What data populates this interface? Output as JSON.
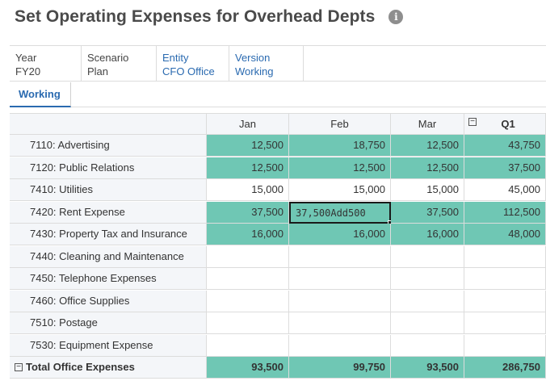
{
  "page": {
    "title": "Set Operating Expenses for Overhead Depts",
    "info_icon": "info-icon"
  },
  "pov": {
    "year": {
      "label": "Year",
      "value": "FY20"
    },
    "scenario": {
      "label": "Scenario",
      "value": "Plan"
    },
    "entity": {
      "label": "Entity",
      "value": "CFO Office"
    },
    "version": {
      "label": "Version",
      "value": "Working"
    }
  },
  "tabs": [
    {
      "label": "Working",
      "active": true
    }
  ],
  "grid": {
    "columns": [
      "Jan",
      "Feb",
      "Mar",
      "Q1"
    ],
    "collapse_symbol": "−",
    "rows": [
      {
        "label": "7110: Advertising",
        "values": [
          "12,500",
          "18,750",
          "12,500",
          "43,750"
        ],
        "fill": "teal"
      },
      {
        "label": "7120: Public Relations",
        "values": [
          "12,500",
          "12,500",
          "12,500",
          "37,500"
        ],
        "fill": "teal"
      },
      {
        "label": "7410: Utilities",
        "values": [
          "15,000",
          "15,000",
          "15,000",
          "45,000"
        ],
        "fill": "white"
      },
      {
        "label": "7420: Rent Expense",
        "values": [
          "37,500",
          "37,500Add500",
          "37,500",
          "112,500"
        ],
        "fill": "teal",
        "editing_col": 1
      },
      {
        "label": "7430: Property Tax and Insurance",
        "values": [
          "16,000",
          "16,000",
          "16,000",
          "48,000"
        ],
        "fill": "teal"
      },
      {
        "label": "7440: Cleaning and Maintenance",
        "values": [
          "",
          "",
          "",
          ""
        ],
        "fill": "white"
      },
      {
        "label": "7450: Telephone Expenses",
        "values": [
          "",
          "",
          "",
          ""
        ],
        "fill": "white"
      },
      {
        "label": "7460: Office Supplies",
        "values": [
          "",
          "",
          "",
          ""
        ],
        "fill": "white"
      },
      {
        "label": "7510: Postage",
        "values": [
          "",
          "",
          "",
          ""
        ],
        "fill": "white"
      },
      {
        "label": "7530: Equipment Expense",
        "values": [
          "",
          "",
          "",
          ""
        ],
        "fill": "white"
      }
    ],
    "total": {
      "label": "Total Office Expenses",
      "values": [
        "93,500",
        "99,750",
        "93,500",
        "286,750"
      ]
    }
  },
  "colors": {
    "teal": "#6fc7b4",
    "link": "#2a6ab0",
    "header_bg": "#f4f6f9"
  }
}
